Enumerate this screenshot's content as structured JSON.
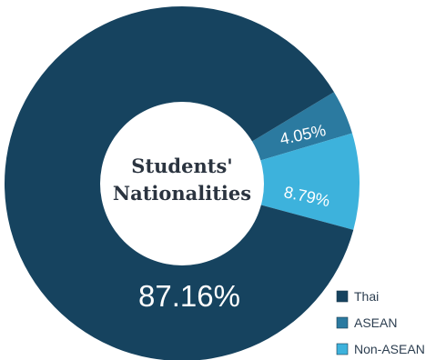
{
  "chart_data": {
    "type": "pie",
    "variant": "donut",
    "title_lines": [
      "Students'",
      "Nationalities"
    ],
    "slices": [
      {
        "label": "Thai",
        "value": 87.16,
        "display": "87.16%",
        "color": "#16435f"
      },
      {
        "label": "ASEAN",
        "value": 4.05,
        "display": "4.05%",
        "color": "#2b7aa0"
      },
      {
        "label": "Non-ASEAN",
        "value": 8.79,
        "display": "8.79%",
        "color": "#3db2dc"
      }
    ],
    "legend_position": "bottom-right"
  }
}
